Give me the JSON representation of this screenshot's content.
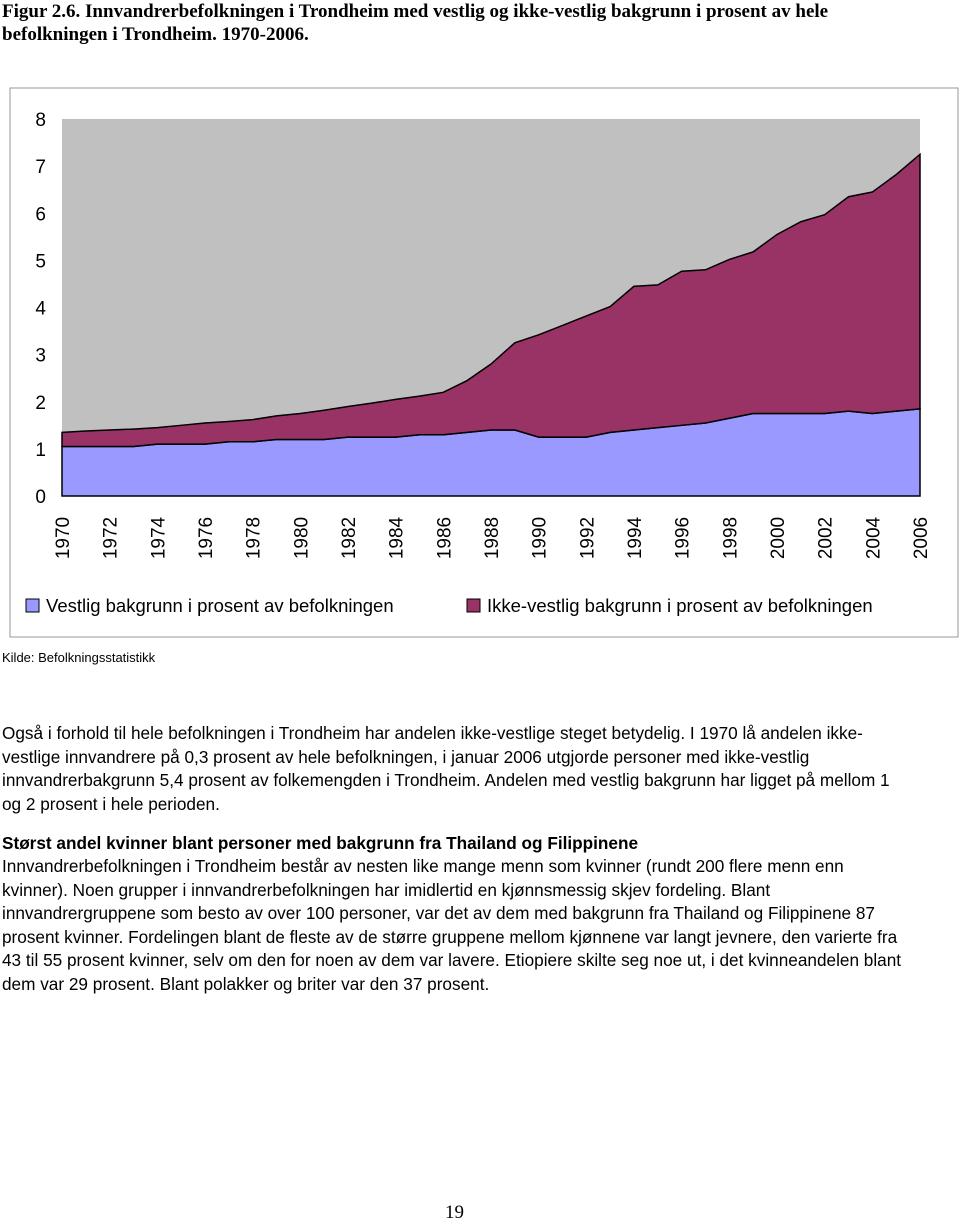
{
  "figure_caption": "Figur 2.6. Innvandrerbefolkningen i Trondheim med vestlig og ikke-vestlig bakgrunn i prosent av hele befolkningen i Trondheim. 1970-2006.",
  "chart_data": {
    "type": "stacked_area",
    "categories": [
      "1970",
      null,
      "1972",
      null,
      "1974",
      null,
      "1976",
      null,
      "1978",
      null,
      "1980",
      null,
      "1982",
      null,
      "1984",
      null,
      "1986",
      null,
      "1988",
      null,
      "1990",
      null,
      "1992",
      null,
      "1994",
      null,
      "1996",
      null,
      "1998",
      null,
      "2000",
      null,
      "2002",
      null,
      "2004",
      null,
      "2006"
    ],
    "series": [
      {
        "name": "Vestlig bakgrunn i prosent av befolkningen",
        "color": "#9999ff",
        "values": [
          1.05,
          1.05,
          1.05,
          1.05,
          1.1,
          1.1,
          1.1,
          1.15,
          1.15,
          1.2,
          1.2,
          1.2,
          1.25,
          1.25,
          1.25,
          1.3,
          1.3,
          1.35,
          1.4,
          1.4,
          1.25,
          1.25,
          1.25,
          1.35,
          1.4,
          1.45,
          1.5,
          1.55,
          1.65,
          1.75,
          1.75,
          1.75,
          1.75,
          1.8,
          1.75,
          1.8,
          1.85
        ]
      },
      {
        "name": "Ikke-vestlig bakgrunn i prosent av befolkningen",
        "color": "#993366",
        "values": [
          0.3,
          0.33,
          0.35,
          0.37,
          0.35,
          0.4,
          0.45,
          0.43,
          0.47,
          0.5,
          0.55,
          0.62,
          0.65,
          0.72,
          0.8,
          0.82,
          0.9,
          1.1,
          1.4,
          1.85,
          2.17,
          2.37,
          2.57,
          2.67,
          3.05,
          3.03,
          3.27,
          3.25,
          3.37,
          3.43,
          3.8,
          4.07,
          4.22,
          4.55,
          4.7,
          5.02,
          5.4
        ]
      }
    ],
    "ylim": [
      0,
      8
    ],
    "yticks": [
      0,
      1,
      2,
      3,
      4,
      5,
      6,
      7,
      8
    ],
    "plot_background": "#c0c0c0",
    "legend": "bottom"
  },
  "source": "Kilde: Befolkningsstatistikk",
  "paragraphs": [
    "Også i forhold til hele befolkningen i Trondheim har andelen ikke-vestlige steget betydelig. I 1970 lå andelen ikke-vestlige innvandrere på 0,3 prosent av hele befolkningen, i januar 2006 utgjorde personer med ikke-vestlig innvandrerbakgrunn 5,4 prosent av folkemengden i Trondheim. Andelen med vestlig bakgrunn har ligget på mellom 1 og 2 prosent i hele perioden."
  ],
  "section": {
    "heading": "Størst andel kvinner blant personer med bakgrunn fra Thailand og Filippinene",
    "text": "Innvandrerbefolkningen i Trondheim består av nesten like mange menn som kvinner (rundt 200 flere menn enn kvinner). Noen grupper i innvandrerbefolkningen har imidlertid en kjønnsmessig skjev fordeling. Blant innvandrergruppene som besto av over 100 personer, var det av dem med bakgrunn fra Thailand og Filippinene 87 prosent kvinner. Fordelingen blant de fleste av de større gruppene mellom kjønnene var langt jevnere, den varierte fra 43 til 55 prosent kvinner, selv om den for noen av dem var lavere. Etiopiere skilte seg noe ut, i det kvinneandelen blant dem var 29 prosent. Blant polakker og briter var den 37 prosent."
  },
  "page_number": "19"
}
